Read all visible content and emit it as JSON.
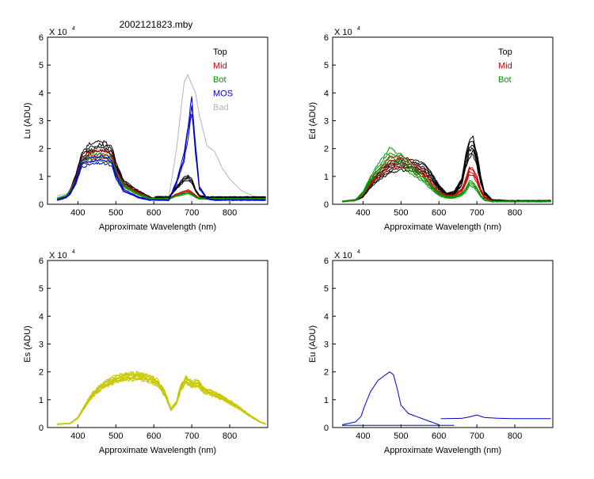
{
  "figure_title": "2002121823.mby",
  "chart_data": [
    {
      "id": "lu",
      "type": "line",
      "ylabel": "Lu (ADU)",
      "xlabel": "Approximate Wavelength (nm)",
      "multiplier": "X 10",
      "exponent": "4",
      "xlim": [
        320,
        900
      ],
      "ylim": [
        0,
        6
      ],
      "xticks": [
        400,
        500,
        600,
        700,
        800
      ],
      "yticks": [
        0,
        1,
        2,
        3,
        4,
        5,
        6
      ],
      "legend": [
        {
          "label": "Top",
          "color": "#000000"
        },
        {
          "label": "Mid",
          "color": "#cc0000"
        },
        {
          "label": "Bot",
          "color": "#009900"
        },
        {
          "label": "MOS",
          "color": "#0000cc"
        },
        {
          "label": "Bad",
          "color": "#b3b3b3"
        }
      ],
      "series": [
        {
          "name": "Bad",
          "color": "#b3b3b3",
          "copies": 1,
          "spread": 0,
          "x": [
            345,
            380,
            395,
            410,
            430,
            460,
            480,
            500,
            520,
            560,
            590,
            600,
            605,
            640,
            660,
            680,
            690,
            700,
            710,
            720,
            740,
            760,
            780,
            800,
            830,
            860,
            895
          ],
          "y": [
            0.3,
            0.4,
            0.9,
            1.6,
            1.9,
            2.0,
            1.9,
            1.2,
            0.7,
            0.35,
            0.25,
            0.25,
            0.3,
            0.3,
            2.0,
            4.4,
            4.65,
            4.3,
            4.0,
            3.2,
            2.1,
            1.9,
            1.3,
            0.9,
            0.5,
            0.3,
            0.25
          ]
        },
        {
          "name": "Top",
          "color": "#000000",
          "copies": 4,
          "spread": 0.08,
          "x": [
            345,
            370,
            380,
            395,
            410,
            430,
            460,
            480,
            490,
            500,
            520,
            560,
            590,
            600,
            605,
            640,
            660,
            680,
            690,
            700,
            710,
            720,
            740,
            760,
            800,
            850,
            895
          ],
          "y": [
            0.2,
            0.3,
            0.5,
            1.0,
            1.7,
            2.0,
            2.1,
            2.0,
            1.9,
            1.4,
            0.8,
            0.45,
            0.25,
            0.2,
            0.25,
            0.25,
            0.6,
            0.9,
            0.95,
            0.85,
            0.5,
            0.3,
            0.25,
            0.25,
            0.25,
            0.25,
            0.25
          ]
        },
        {
          "name": "Mid",
          "color": "#cc0000",
          "copies": 3,
          "spread": 0.07,
          "x": [
            345,
            370,
            380,
            395,
            410,
            430,
            460,
            480,
            490,
            500,
            520,
            560,
            590,
            600,
            605,
            640,
            660,
            680,
            690,
            700,
            710,
            720,
            740,
            760,
            800,
            850,
            895
          ],
          "y": [
            0.2,
            0.3,
            0.5,
            0.9,
            1.55,
            1.75,
            1.8,
            1.75,
            1.65,
            1.2,
            0.7,
            0.4,
            0.22,
            0.2,
            0.2,
            0.2,
            0.35,
            0.45,
            0.48,
            0.42,
            0.3,
            0.22,
            0.2,
            0.2,
            0.2,
            0.2,
            0.2
          ]
        },
        {
          "name": "Bot",
          "color": "#009900",
          "copies": 3,
          "spread": 0.07,
          "x": [
            345,
            370,
            380,
            395,
            410,
            430,
            460,
            480,
            490,
            500,
            520,
            560,
            590,
            600,
            605,
            640,
            660,
            680,
            690,
            700,
            710,
            720,
            740,
            760,
            800,
            850,
            895
          ],
          "y": [
            0.2,
            0.3,
            0.45,
            0.85,
            1.5,
            1.65,
            1.7,
            1.65,
            1.55,
            1.1,
            0.65,
            0.35,
            0.2,
            0.2,
            0.2,
            0.2,
            0.3,
            0.38,
            0.4,
            0.35,
            0.25,
            0.2,
            0.2,
            0.2,
            0.2,
            0.2,
            0.2
          ]
        },
        {
          "name": "MOS",
          "color": "#0000cc",
          "copies": 3,
          "spread": 0.08,
          "x": [
            345,
            370,
            380,
            395,
            410,
            430,
            460,
            480,
            490,
            500,
            520,
            560,
            590,
            600,
            605,
            640,
            660,
            680,
            690,
            700,
            710,
            720,
            740,
            760,
            800,
            850,
            895
          ],
          "y": [
            0.15,
            0.25,
            0.4,
            0.8,
            1.45,
            1.55,
            1.6,
            1.55,
            1.45,
            1.0,
            0.5,
            0.25,
            0.15,
            0.15,
            0.15,
            0.15,
            0.8,
            1.7,
            2.6,
            3.6,
            2.0,
            0.6,
            0.2,
            0.15,
            0.15,
            0.15,
            0.15
          ]
        }
      ]
    },
    {
      "id": "ed",
      "type": "line",
      "ylabel": "Ed  (ADU)",
      "xlabel": "Approximate Wavelength (nm)",
      "multiplier": "X 10",
      "exponent": "4",
      "xlim": [
        320,
        900
      ],
      "ylim": [
        0,
        6
      ],
      "xticks": [
        400,
        500,
        600,
        700,
        800
      ],
      "yticks": [
        0,
        1,
        2,
        3,
        4,
        5,
        6
      ],
      "legend": [
        {
          "label": "Top",
          "color": "#000000"
        },
        {
          "label": "Mid",
          "color": "#cc0000"
        },
        {
          "label": "Bot",
          "color": "#009900"
        }
      ],
      "series": [
        {
          "name": "Top",
          "color": "#000000",
          "copies": 6,
          "spread": 0.15,
          "x": [
            345,
            380,
            400,
            420,
            440,
            470,
            500,
            530,
            560,
            580,
            600,
            620,
            640,
            660,
            670,
            680,
            690,
            700,
            710,
            720,
            740,
            780,
            895
          ],
          "y": [
            0.1,
            0.15,
            0.3,
            0.7,
            1.0,
            1.3,
            1.45,
            1.4,
            1.3,
            1.0,
            0.6,
            0.35,
            0.4,
            0.8,
            1.5,
            2.0,
            2.1,
            1.6,
            0.9,
            0.4,
            0.15,
            0.12,
            0.12
          ]
        },
        {
          "name": "Mid",
          "color": "#cc0000",
          "copies": 4,
          "spread": 0.12,
          "x": [
            345,
            380,
            400,
            420,
            440,
            470,
            500,
            530,
            560,
            580,
            600,
            620,
            640,
            660,
            670,
            680,
            690,
            700,
            710,
            720,
            740,
            780,
            895
          ],
          "y": [
            0.1,
            0.15,
            0.35,
            0.8,
            1.1,
            1.5,
            1.55,
            1.35,
            1.1,
            0.7,
            0.4,
            0.3,
            0.3,
            0.5,
            0.8,
            1.2,
            1.15,
            0.9,
            0.5,
            0.25,
            0.12,
            0.1,
            0.1
          ]
        },
        {
          "name": "Bot",
          "color": "#009900",
          "copies": 4,
          "spread": 0.12,
          "x": [
            345,
            380,
            400,
            420,
            440,
            470,
            500,
            530,
            560,
            580,
            600,
            620,
            640,
            660,
            670,
            680,
            690,
            700,
            710,
            720,
            740,
            780,
            895
          ],
          "y": [
            0.1,
            0.15,
            0.4,
            0.9,
            1.3,
            1.8,
            1.6,
            1.2,
            0.9,
            0.6,
            0.35,
            0.25,
            0.25,
            0.35,
            0.5,
            0.75,
            0.7,
            0.55,
            0.3,
            0.15,
            0.1,
            0.1,
            0.1
          ]
        }
      ]
    },
    {
      "id": "es",
      "type": "line",
      "ylabel": "Es  (ADU)",
      "xlabel": "Approximate Wavelength (nm)",
      "multiplier": "X 10",
      "exponent": "4",
      "xlim": [
        320,
        900
      ],
      "ylim": [
        0,
        6
      ],
      "xticks": [
        400,
        500,
        600,
        700,
        800
      ],
      "yticks": [
        0,
        1,
        2,
        3,
        4,
        5,
        6
      ],
      "legend": [],
      "series": [
        {
          "name": "Es",
          "color": "#c8c800",
          "copies": 10,
          "spread": 0.07,
          "x": [
            345,
            380,
            400,
            420,
            440,
            470,
            500,
            530,
            560,
            590,
            610,
            630,
            645,
            660,
            670,
            685,
            700,
            715,
            730,
            760,
            790,
            820,
            850,
            880,
            895
          ],
          "y": [
            0.12,
            0.15,
            0.35,
            0.8,
            1.2,
            1.55,
            1.75,
            1.82,
            1.85,
            1.75,
            1.6,
            1.2,
            0.65,
            0.9,
            1.4,
            1.72,
            1.55,
            1.6,
            1.35,
            1.2,
            1.0,
            0.75,
            0.45,
            0.2,
            0.12
          ]
        }
      ]
    },
    {
      "id": "eu",
      "type": "line",
      "ylabel": "Eu  (ADU)",
      "xlabel": "Approximate Wavelength (nm)",
      "multiplier": "X 10",
      "exponent": "4",
      "xlim": [
        320,
        900
      ],
      "ylim": [
        0,
        6
      ],
      "xticks": [
        400,
        500,
        600,
        700,
        800
      ],
      "yticks": [
        0,
        1,
        2,
        3,
        4,
        5,
        6
      ],
      "legend": [],
      "series": [
        {
          "name": "Eu",
          "color": "#0000cc",
          "copies": 1,
          "spread": 0,
          "x": [
            345,
            380,
            395,
            405,
            420,
            440,
            455,
            470,
            480,
            490,
            500,
            520,
            560,
            590,
            600
          ],
          "y": [
            0.1,
            0.2,
            0.4,
            0.8,
            1.3,
            1.7,
            1.85,
            2.0,
            1.9,
            1.4,
            0.8,
            0.5,
            0.3,
            0.15,
            0.1
          ]
        },
        {
          "name": "Eu-baseline",
          "color": "#0000cc",
          "copies": 1,
          "spread": 0,
          "x": [
            345,
            640
          ],
          "y": [
            0.08,
            0.08
          ]
        },
        {
          "name": "Eu-red",
          "color": "#0000cc",
          "copies": 1,
          "spread": 0,
          "x": [
            605,
            660,
            680,
            700,
            720,
            760,
            800,
            895
          ],
          "y": [
            0.32,
            0.33,
            0.38,
            0.45,
            0.36,
            0.33,
            0.32,
            0.32
          ]
        }
      ]
    }
  ]
}
